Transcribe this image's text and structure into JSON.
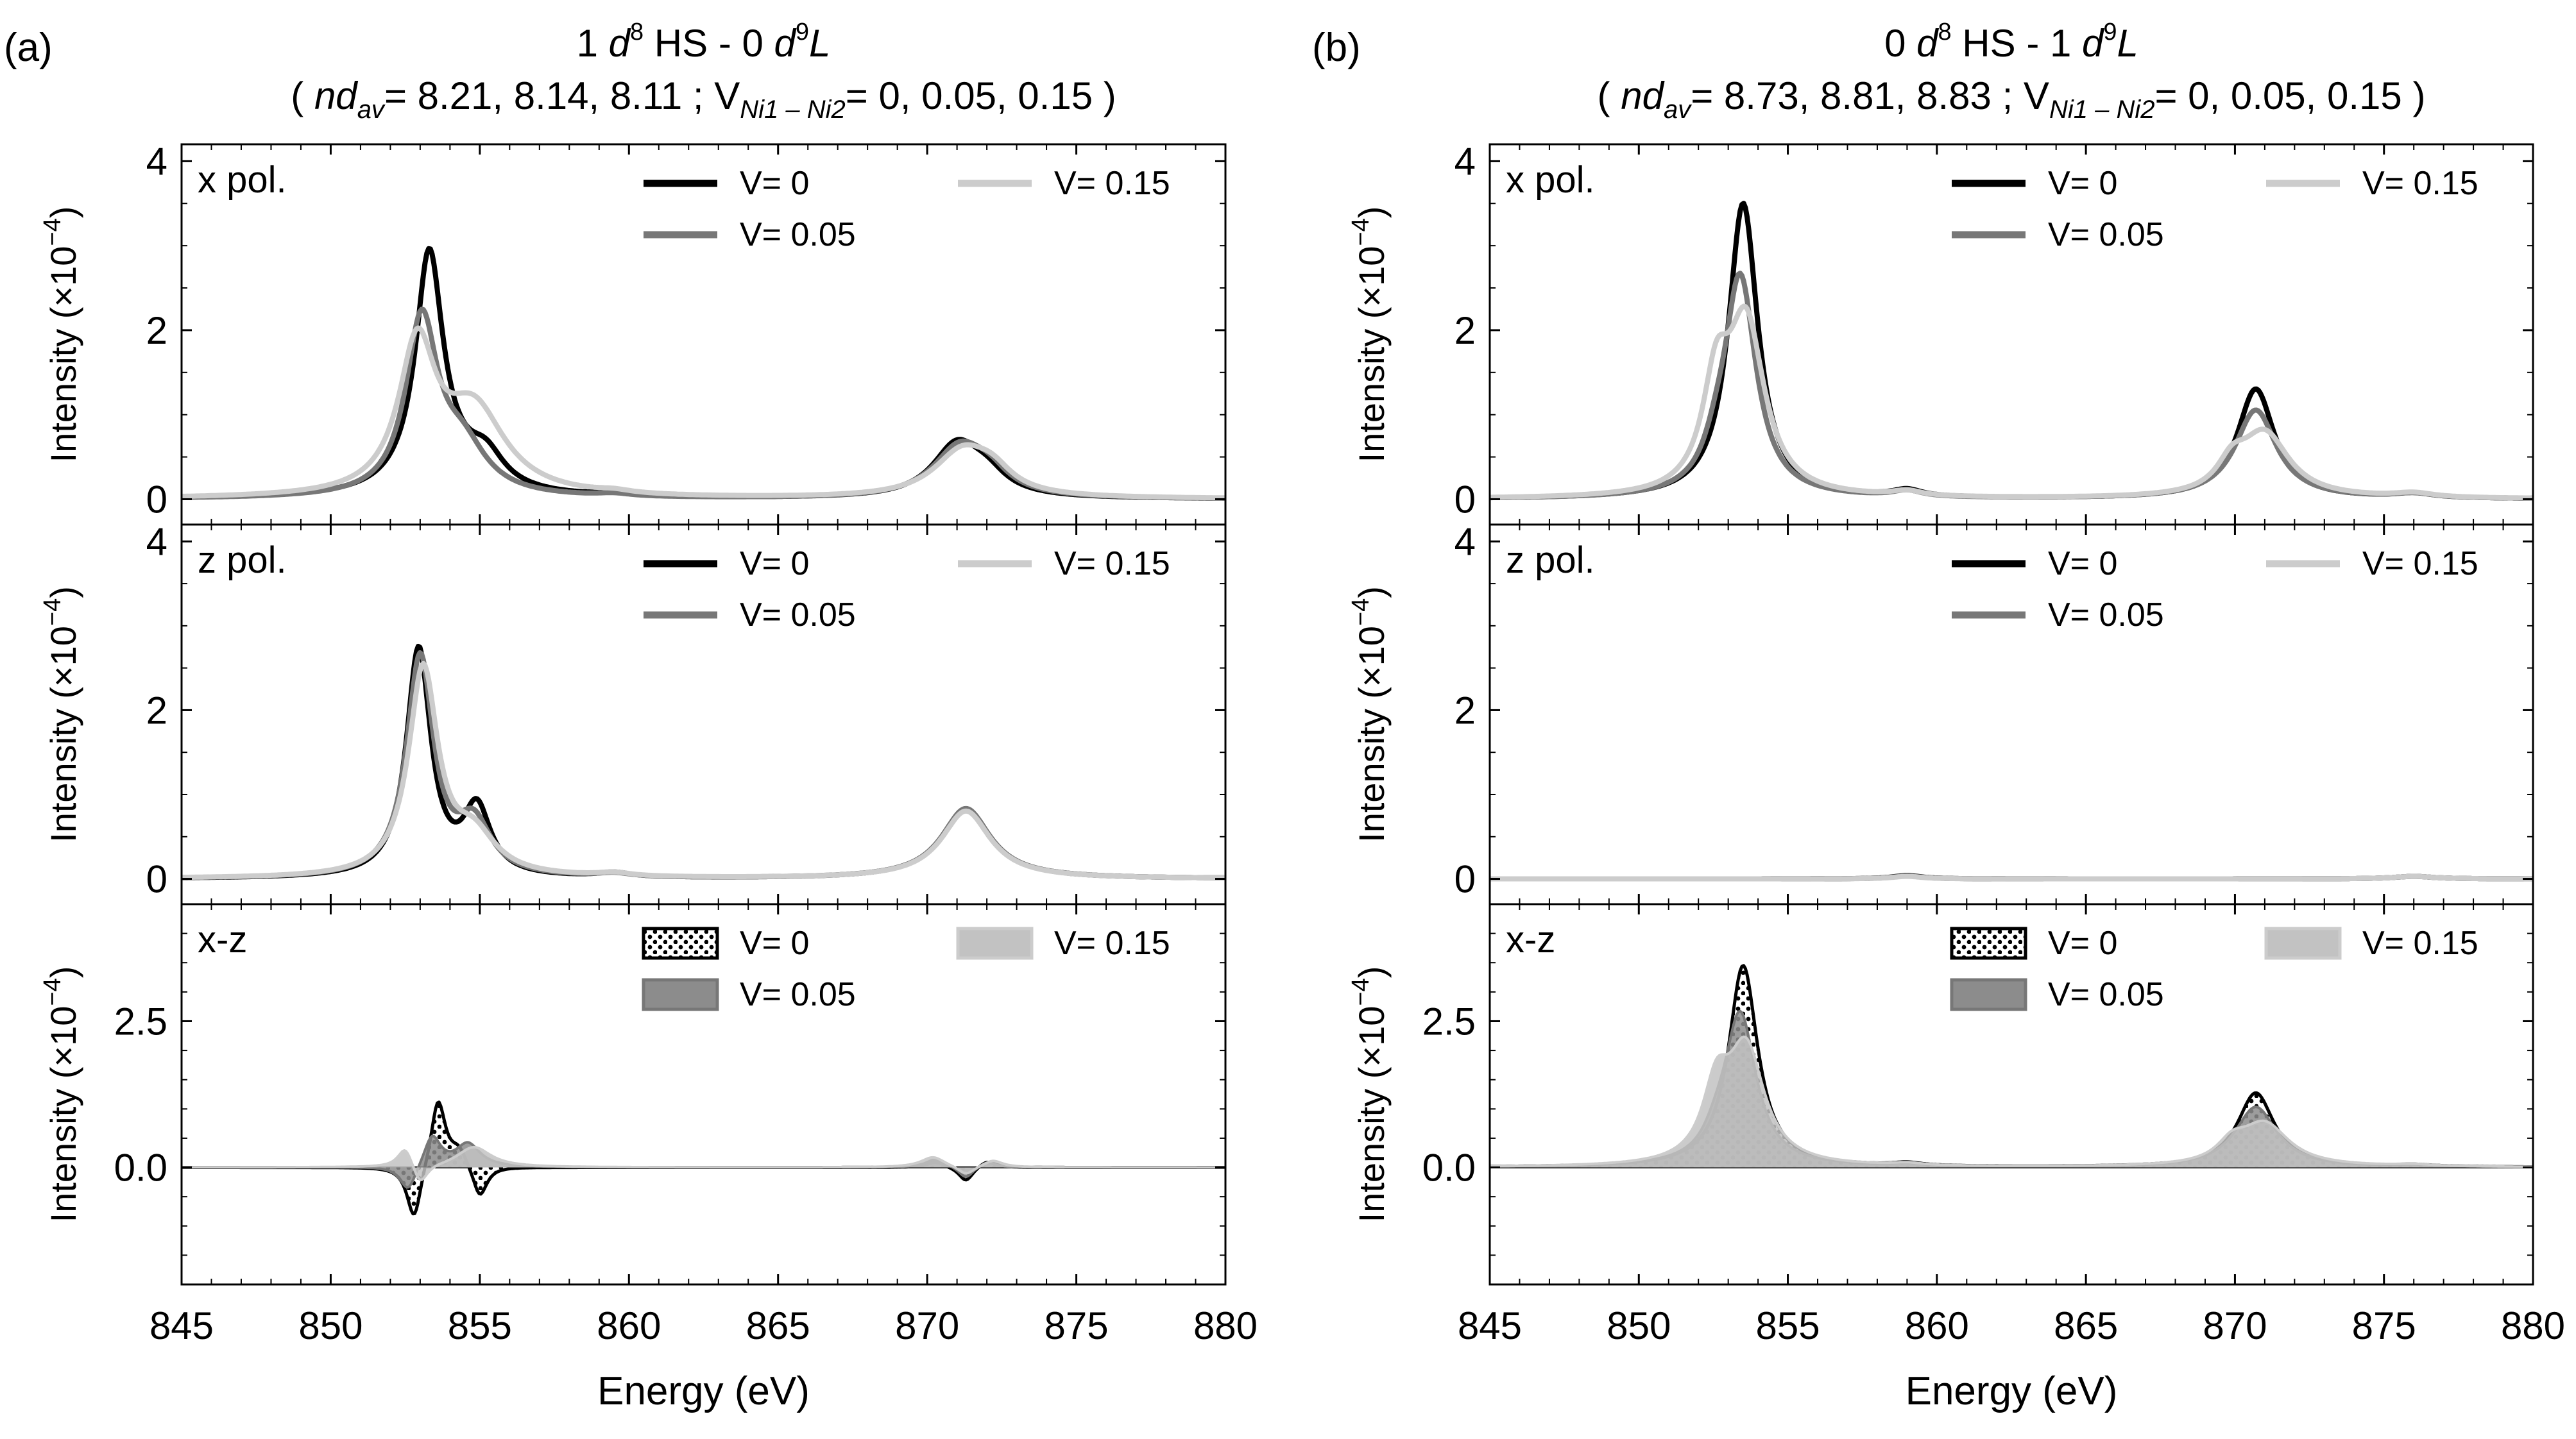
{
  "figure": {
    "x_range": [
      845,
      880
    ],
    "x_ticks": [
      "845",
      "850",
      "855",
      "860",
      "865",
      "870",
      "875",
      "880"
    ],
    "xlabel": "Energy (eV)",
    "ylabel_text": "Intensity (×10",
    "ylabel_exp": "−4",
    "ylabel_close": ")",
    "colors": {
      "v0": "#000000",
      "v005": "#777777",
      "v015": "#cccccc",
      "fill005": "#8c8c8c",
      "fill015": "#c2c2c2"
    }
  },
  "chart_data": [
    {
      "panel": "a",
      "label": "(a)",
      "title": {
        "a": "1 ",
        "d": "d",
        "sup": "8",
        "b": " HS - 0 ",
        "d2": "d",
        "sup2": "9",
        "L": "L"
      },
      "subtitle": {
        "open": "( ",
        "nd": "nd",
        "ndsub": "av",
        "vals": "= 8.21, 8.14, 8.11  ;   V",
        "vsub": "Ni1 – Ni2",
        "rest": "= 0, 0.05, 0.15 )"
      },
      "type": "line",
      "subplots": [
        {
          "name": "x pol.",
          "kind": "line",
          "ylim": [
            -0.3,
            4.2
          ],
          "yticks": [
            "0",
            "2",
            "4"
          ],
          "ytick_vals": [
            0,
            2,
            4
          ],
          "legend": [
            "V= 0",
            "V= 0.05",
            "V= 0.15"
          ],
          "series": [
            {
              "name": "V= 0",
              "peaks": [
                [
                  853.3,
                  2.65,
                  0.55
                ],
                [
                  855.2,
                  0.35,
                  0.75
                ],
                [
                  853.8,
                  0.3,
                  1.5
                ],
                [
                  859.5,
                  0.03,
                  0.7
                ],
                [
                  871.0,
                  0.62,
                  1.0
                ],
                [
                  872.0,
                  0.2,
                  0.8
                ]
              ]
            },
            {
              "name": "V= 0.05",
              "peaks": [
                [
                  853.05,
                  2.05,
                  0.65
                ],
                [
                  854.4,
                  0.55,
                  1.0
                ],
                [
                  859.5,
                  0.03,
                  0.7
                ],
                [
                  871.1,
                  0.6,
                  1.1
                ],
                [
                  872.1,
                  0.2,
                  0.8
                ]
              ]
            },
            {
              "name": "V= 0.15",
              "peaks": [
                [
                  852.9,
                  1.7,
                  0.75
                ],
                [
                  854.8,
                  1.0,
                  1.3
                ],
                [
                  859.5,
                  0.03,
                  0.7
                ],
                [
                  871.2,
                  0.55,
                  1.2
                ],
                [
                  872.2,
                  0.2,
                  0.8
                ]
              ]
            }
          ]
        },
        {
          "name": "z pol.",
          "kind": "line",
          "ylim": [
            -0.3,
            4.2
          ],
          "yticks": [
            "0",
            "2",
            "4"
          ],
          "ytick_vals": [
            0,
            2,
            4
          ],
          "legend": [
            "V= 0",
            "V= 0.05",
            "V= 0.15"
          ],
          "series": [
            {
              "name": "V= 0",
              "peaks": [
                [
                  852.95,
                  2.7,
                  0.5
                ],
                [
                  854.9,
                  0.78,
                  0.55
                ],
                [
                  859.5,
                  0.05,
                  0.7
                ],
                [
                  871.3,
                  0.83,
                  1.0
                ]
              ]
            },
            {
              "name": "V= 0.05",
              "peaks": [
                [
                  853.0,
                  2.6,
                  0.55
                ],
                [
                  854.8,
                  0.6,
                  0.7
                ],
                [
                  859.5,
                  0.04,
                  0.7
                ],
                [
                  871.3,
                  0.83,
                  1.0
                ]
              ]
            },
            {
              "name": "V= 0.15",
              "peaks": [
                [
                  853.1,
                  2.45,
                  0.6
                ],
                [
                  854.8,
                  0.45,
                  0.9
                ],
                [
                  859.5,
                  0.04,
                  0.7
                ],
                [
                  871.3,
                  0.8,
                  1.0
                ]
              ]
            }
          ]
        },
        {
          "name": "x-z",
          "kind": "fill",
          "ylim": [
            -2.0,
            4.5
          ],
          "yticks": [
            "0.0",
            "2.5"
          ],
          "ytick_vals": [
            0,
            2.5
          ],
          "legend": [
            "V= 0",
            "V= 0.05",
            "V= 0.15"
          ],
          "series": [
            {
              "name": "V= 0",
              "peaks": [
                [
                  852.8,
                  -0.95,
                  0.3
                ],
                [
                  853.6,
                  1.2,
                  0.3
                ],
                [
                  854.3,
                  0.3,
                  0.35
                ],
                [
                  855.0,
                  -0.55,
                  0.3
                ],
                [
                  870.3,
                  0.1,
                  0.4
                ],
                [
                  871.3,
                  -0.25,
                  0.3
                ],
                [
                  872.0,
                  0.12,
                  0.35
                ]
              ]
            },
            {
              "name": "V= 0.05",
              "peaks": [
                [
                  852.6,
                  -0.45,
                  0.35
                ],
                [
                  853.4,
                  0.55,
                  0.35
                ],
                [
                  854.6,
                  0.4,
                  0.5
                ],
                [
                  870.3,
                  0.15,
                  0.4
                ],
                [
                  871.3,
                  -0.2,
                  0.3
                ],
                [
                  872.0,
                  0.1,
                  0.35
                ]
              ]
            },
            {
              "name": "V= 0.15",
              "peaks": [
                [
                  852.5,
                  0.35,
                  0.3
                ],
                [
                  853.0,
                  -0.35,
                  0.3
                ],
                [
                  854.8,
                  0.35,
                  0.7
                ],
                [
                  870.2,
                  0.18,
                  0.5
                ],
                [
                  871.3,
                  -0.15,
                  0.35
                ],
                [
                  872.2,
                  0.12,
                  0.4
                ]
              ]
            }
          ]
        }
      ]
    },
    {
      "panel": "b",
      "label": "(b)",
      "title": {
        "a": "0 ",
        "d": "d",
        "sup": "8",
        "b": " HS - 1 ",
        "d2": "d",
        "sup2": "9",
        "L": "L"
      },
      "subtitle": {
        "open": "( ",
        "nd": "nd",
        "ndsub": "av",
        "vals": "= 8.73, 8.81, 8.83  ;   V",
        "vsub": "Ni1 – Ni2",
        "rest": "= 0, 0.05, 0.15 )"
      },
      "type": "line",
      "subplots": [
        {
          "name": "x pol.",
          "kind": "line",
          "ylim": [
            -0.3,
            4.2
          ],
          "yticks": [
            "0",
            "2",
            "4"
          ],
          "ytick_vals": [
            0,
            2,
            4
          ],
          "legend": [
            "V= 0",
            "V= 0.05",
            "V= 0.15"
          ],
          "series": [
            {
              "name": "V= 0",
              "peaks": [
                [
                  853.5,
                  3.5,
                  0.6
                ],
                [
                  859.0,
                  0.08,
                  0.6
                ],
                [
                  870.7,
                  1.3,
                  0.75
                ],
                [
                  876.0,
                  0.05,
                  0.8
                ]
              ]
            },
            {
              "name": "V= 0.05",
              "peaks": [
                [
                  853.4,
                  2.6,
                  0.65
                ],
                [
                  852.6,
                  0.25,
                  0.5
                ],
                [
                  859.0,
                  0.07,
                  0.6
                ],
                [
                  870.7,
                  1.05,
                  0.85
                ],
                [
                  876.0,
                  0.05,
                  0.8
                ]
              ]
            },
            {
              "name": "V= 0.15",
              "peaks": [
                [
                  853.6,
                  2.0,
                  0.75
                ],
                [
                  852.6,
                  1.15,
                  0.55
                ],
                [
                  859.0,
                  0.06,
                  0.6
                ],
                [
                  871.0,
                  0.75,
                  1.0
                ],
                [
                  869.9,
                  0.3,
                  0.6
                ],
                [
                  876.0,
                  0.05,
                  0.8
                ]
              ]
            }
          ]
        },
        {
          "name": "z pol.",
          "kind": "line",
          "ylim": [
            -0.3,
            4.2
          ],
          "yticks": [
            "0",
            "2",
            "4"
          ],
          "ytick_vals": [
            0,
            2,
            4
          ],
          "legend": [
            "V= 0",
            "V= 0.05",
            "V= 0.15"
          ],
          "series": [
            {
              "name": "V= 0",
              "peaks": [
                [
                  859.0,
                  0.04,
                  0.6
                ],
                [
                  876.0,
                  0.03,
                  0.8
                ]
              ]
            },
            {
              "name": "V= 0.05",
              "peaks": [
                [
                  859.0,
                  0.035,
                  0.6
                ],
                [
                  876.0,
                  0.03,
                  0.8
                ]
              ]
            },
            {
              "name": "V= 0.15",
              "peaks": [
                [
                  859.0,
                  0.03,
                  0.6
                ],
                [
                  876.0,
                  0.03,
                  0.8
                ]
              ]
            }
          ]
        },
        {
          "name": "x-z",
          "kind": "fill",
          "ylim": [
            -2.0,
            4.5
          ],
          "yticks": [
            "0.0",
            "2.5"
          ],
          "ytick_vals": [
            0,
            2.5
          ],
          "legend": [
            "V= 0",
            "V= 0.05",
            "V= 0.15"
          ],
          "series": [
            {
              "name": "V= 0",
              "peaks": [
                [
                  853.5,
                  3.45,
                  0.6
                ],
                [
                  859.0,
                  0.05,
                  0.6
                ],
                [
                  870.7,
                  1.27,
                  0.75
                ],
                [
                  876.0,
                  0.03,
                  0.8
                ]
              ]
            },
            {
              "name": "V= 0.05",
              "peaks": [
                [
                  853.4,
                  2.6,
                  0.65
                ],
                [
                  852.6,
                  0.25,
                  0.5
                ],
                [
                  859.0,
                  0.04,
                  0.6
                ],
                [
                  870.7,
                  1.03,
                  0.85
                ],
                [
                  876.0,
                  0.03,
                  0.8
                ]
              ]
            },
            {
              "name": "V= 0.15",
              "peaks": [
                [
                  853.6,
                  1.95,
                  0.75
                ],
                [
                  852.6,
                  1.15,
                  0.55
                ],
                [
                  859.0,
                  0.04,
                  0.6
                ],
                [
                  871.0,
                  0.72,
                  1.0
                ],
                [
                  869.9,
                  0.3,
                  0.6
                ],
                [
                  876.0,
                  0.03,
                  0.8
                ]
              ]
            }
          ]
        }
      ]
    }
  ]
}
